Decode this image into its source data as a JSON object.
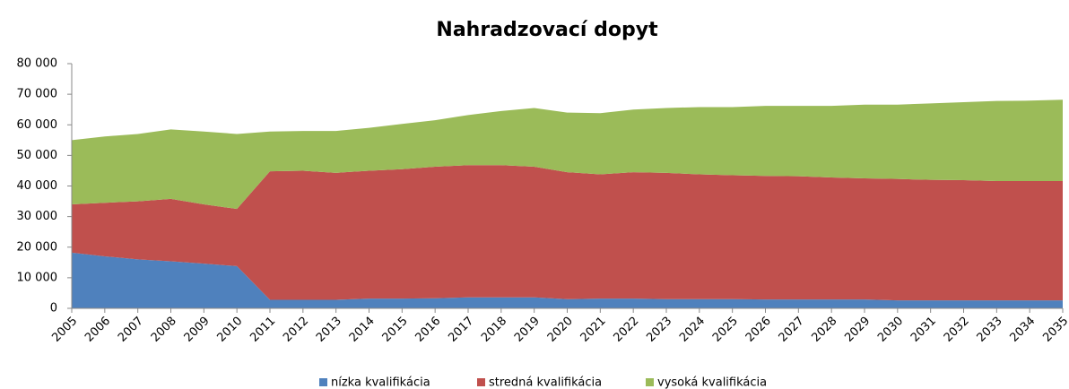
{
  "chart_data": {
    "type": "stacked_area",
    "title": "Nahradzovací dopyt",
    "categories": [
      "2005",
      "2006",
      "2007",
      "2008",
      "2009",
      "2010",
      "2011",
      "2012",
      "2013",
      "2014",
      "2015",
      "2016",
      "2017",
      "2018",
      "2019",
      "2020",
      "2021",
      "2022",
      "2023",
      "2024",
      "2025",
      "2026",
      "2027",
      "2028",
      "2029",
      "2030",
      "2031",
      "2032",
      "2033",
      "2034",
      "2035"
    ],
    "series": [
      {
        "name": "nízka kvalifikácia",
        "color": "#4f81bd",
        "values": [
          18200,
          17000,
          16000,
          15400,
          14600,
          13800,
          2800,
          2800,
          2800,
          3200,
          3200,
          3300,
          3600,
          3600,
          3600,
          3000,
          3200,
          3200,
          3000,
          3000,
          3000,
          2900,
          2900,
          2900,
          2900,
          2600,
          2600,
          2600,
          2600,
          2600,
          2600
        ]
      },
      {
        "name": "stredná kvalifikácia",
        "color": "#c0504d",
        "values": [
          15800,
          17500,
          19000,
          20400,
          19400,
          18700,
          42000,
          42200,
          41500,
          41800,
          42300,
          43000,
          43200,
          43200,
          42700,
          41500,
          40600,
          41300,
          41300,
          40800,
          40500,
          40400,
          40300,
          39900,
          39600,
          39700,
          39400,
          39300,
          39000,
          39000,
          39000
        ]
      },
      {
        "name": "vysoká kvalifikácia",
        "color": "#9bbb59",
        "values": [
          21000,
          21700,
          22000,
          22700,
          23800,
          24500,
          13000,
          13000,
          13700,
          14000,
          14800,
          15200,
          16400,
          17700,
          19200,
          19500,
          20000,
          20500,
          21200,
          22000,
          22300,
          22900,
          23000,
          23400,
          24100,
          24300,
          25000,
          25500,
          26200,
          26300,
          26600
        ]
      }
    ],
    "ylim": [
      0,
      80000
    ],
    "yticks": [
      0,
      {
        "value": 10000,
        "label": "10 000"
      },
      {
        "value": 20000,
        "label": "20 000"
      },
      {
        "value": 30000,
        "label": "30 000"
      },
      {
        "value": 40000,
        "label": "40 000"
      },
      {
        "value": 50000,
        "label": "50 000"
      },
      {
        "value": 60000,
        "label": "60 000"
      },
      {
        "value": 70000,
        "label": "70 000"
      },
      {
        "value": 80000,
        "label": "80 000"
      }
    ],
    "grid": false,
    "legend": "bottom"
  }
}
